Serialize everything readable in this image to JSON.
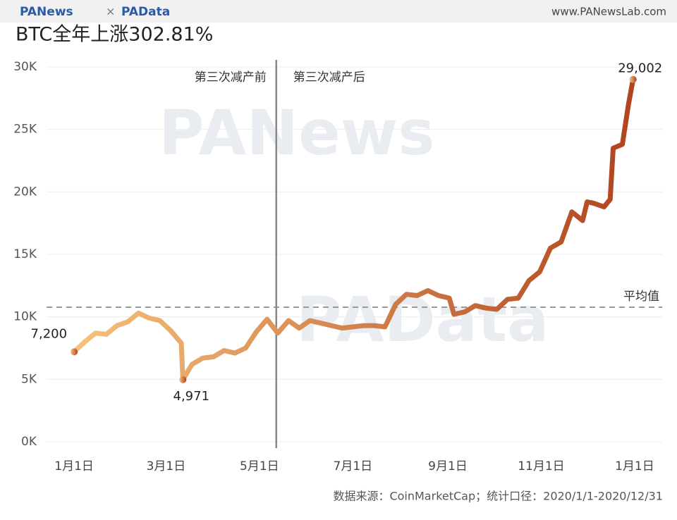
{
  "header": {
    "brand_left": "PANews",
    "separator": "×",
    "brand_right": "PAData",
    "website": "www.PANewsLab.com"
  },
  "watermark": [
    "PANews",
    "PAData"
  ],
  "chart_data": {
    "type": "line",
    "title": "BTC全年上涨302.81%",
    "x": [
      0,
      7,
      14,
      21,
      28,
      35,
      42,
      49,
      56,
      63,
      70,
      71,
      77,
      84,
      91,
      98,
      105,
      112,
      119,
      126,
      133,
      140,
      147,
      154,
      161,
      168,
      175,
      182,
      189,
      196,
      203,
      210,
      217,
      224,
      231,
      238,
      245,
      248,
      255,
      262,
      269,
      276,
      283,
      290,
      297,
      304,
      311,
      318,
      325,
      332,
      335,
      339,
      346,
      350,
      352,
      358,
      362,
      365
    ],
    "series": [
      {
        "name": "BTC",
        "color_start": "#f6c27c",
        "color_end": "#b0441e",
        "values": [
          7200,
          8000,
          8700,
          8600,
          9300,
          9600,
          10300,
          9900,
          9700,
          8900,
          7900,
          4971,
          6200,
          6700,
          6800,
          7300,
          7100,
          7500,
          8800,
          9800,
          8700,
          9700,
          9100,
          9700,
          9500,
          9300,
          9100,
          9200,
          9300,
          9300,
          9200,
          11000,
          11800,
          11700,
          12100,
          11700,
          11500,
          10200,
          10400,
          10900,
          10700,
          10600,
          11400,
          11500,
          12900,
          13600,
          15500,
          16000,
          18400,
          17700,
          19200,
          19100,
          18800,
          19400,
          23500,
          23800,
          27000,
          29002
        ],
        "value_labels": {
          "0": "7,200",
          "11": "4,971",
          "57": "29,002"
        }
      }
    ],
    "xlim": [
      -18,
      384
    ],
    "xticks": [
      {
        "value": 0,
        "label": "1月1日"
      },
      {
        "value": 60,
        "label": "3月1日"
      },
      {
        "value": 121,
        "label": "5月1日"
      },
      {
        "value": 182,
        "label": "7月1日"
      },
      {
        "value": 244,
        "label": "9月1日"
      },
      {
        "value": 305,
        "label": "11月1日"
      },
      {
        "value": 366,
        "label": "1月1日"
      }
    ],
    "ylim": [
      0,
      30000
    ],
    "yticks": [
      {
        "value": 0,
        "label": "0K"
      },
      {
        "value": 5000,
        "label": "5K"
      },
      {
        "value": 10000,
        "label": "10K"
      },
      {
        "value": 15000,
        "label": "15K"
      },
      {
        "value": 20000,
        "label": "20K"
      },
      {
        "value": 25000,
        "label": "25K"
      },
      {
        "value": 30000,
        "label": "30K"
      }
    ],
    "grid": true,
    "halving": {
      "x": 132,
      "before_label": "第三次减产前",
      "after_label": "第三次减产后"
    },
    "mean": {
      "value": 10770,
      "label": "平均值"
    },
    "source": "数据来源：CoinMarketCap；统计口径：2020/1/1-2020/12/31"
  }
}
